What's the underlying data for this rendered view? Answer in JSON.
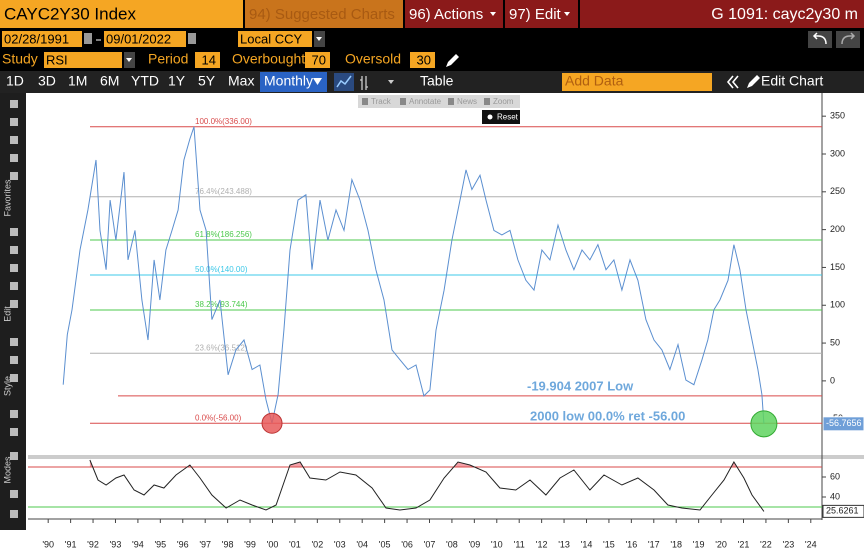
{
  "header": {
    "title": "CAYC2Y30 Index",
    "menus": [
      "94) Suggested Charts",
      "96) Actions",
      "97) Edit"
    ],
    "page_id": "G 1091: cayc2y30 m"
  },
  "controls": {
    "start_date": "02/28/1991",
    "end_date": "09/01/2022",
    "currency": "Local CCY",
    "study_label": "Study",
    "study": "RSI",
    "period_label": "Period",
    "period": 14,
    "overbought_label": "Overbought",
    "overbought": 70,
    "oversold_label": "Oversold",
    "oversold": 30
  },
  "range_bar": {
    "periods": [
      "1D",
      "3D",
      "1M",
      "6M",
      "YTD",
      "1Y",
      "5Y",
      "Max"
    ],
    "frequency": "Monthly",
    "table": "Table",
    "add_data": "Add Data",
    "edit_chart": "Edit Chart"
  },
  "chart_tools": {
    "items": [
      "Track",
      "Annotate",
      "News",
      "Zoom"
    ],
    "reset": "Reset"
  },
  "sidebar": [
    "Favorites",
    "Edit",
    "Style",
    "Modes"
  ],
  "chart_data": [
    {
      "type": "line",
      "color": "#5b8fd0",
      "x": [
        1991.17,
        1991.35,
        1991.56,
        1991.92,
        1992.27,
        1992.63,
        1992.81,
        1993.08,
        1993.26,
        1993.52,
        1993.88,
        1994.06,
        1994.37,
        1994.68,
        1994.95,
        1995.22,
        1995.48,
        1995.75,
        1996.02,
        1996.29,
        1996.55,
        1996.82,
        1997.0,
        1997.27,
        1997.54,
        1997.8,
        1998.16,
        1998.52,
        1998.87,
        1999.23,
        1999.59,
        1999.94,
        2000.21,
        2000.48,
        2000.75,
        2001.01,
        2001.28,
        2001.64,
        2001.99,
        2002.26,
        2002.62,
        2002.97,
        2003.33,
        2003.69,
        2004.04,
        2004.4,
        2004.76,
        2005.11,
        2005.47,
        2005.83,
        2006.18,
        2006.54,
        2006.9,
        2007.25,
        2007.52,
        2007.79,
        2008.15,
        2008.5,
        2008.86,
        2009.13,
        2009.39,
        2009.75,
        2010.02,
        2010.37,
        2010.73,
        2011.09,
        2011.44,
        2011.8,
        2012.16,
        2012.51,
        2012.87,
        2013.23,
        2013.58,
        2013.94,
        2014.3,
        2014.65,
        2015.01,
        2015.37,
        2015.72,
        2016.08,
        2016.44,
        2016.79,
        2017.15,
        2017.51,
        2017.86,
        2018.22,
        2018.58,
        2018.93,
        2019.29,
        2019.65,
        2019.91,
        2020.18,
        2020.45,
        2020.81,
        2021.07,
        2021.34,
        2021.61,
        2021.88,
        2022.14,
        2022.32,
        2022.41
      ],
      "values": [
        -5,
        61,
        94,
        173,
        226,
        292,
        199,
        147,
        239,
        186,
        276,
        160,
        199,
        107,
        54,
        160,
        107,
        173,
        199,
        226,
        292,
        320,
        336,
        226,
        199,
        81,
        107,
        8,
        41,
        54,
        15,
        21,
        -25,
        -56,
        -18,
        67,
        173,
        239,
        246,
        147,
        239,
        186,
        226,
        199,
        266,
        239,
        199,
        147,
        107,
        41,
        28,
        15,
        21,
        -19.904,
        -12,
        67,
        120,
        186,
        239,
        279,
        253,
        272,
        239,
        199,
        193,
        199,
        160,
        133,
        120,
        173,
        160,
        206,
        173,
        147,
        173,
        160,
        180,
        147,
        160,
        120,
        160,
        133,
        81,
        54,
        41,
        15,
        48,
        1,
        -5,
        28,
        54,
        94,
        107,
        133,
        180,
        147,
        94,
        54,
        15,
        -18,
        -56.7656
      ],
      "xlim": [
        1989.6,
        2025.0
      ],
      "ylim": [
        -98,
        378
      ],
      "yticks": [
        -50,
        0,
        50,
        100,
        150,
        200,
        250,
        300,
        350
      ],
      "xticks": [
        {
          "value": 1990.5,
          "label": "'90"
        },
        {
          "value": 1991.5,
          "label": "'91"
        },
        {
          "value": 1992.5,
          "label": "'92"
        },
        {
          "value": 1993.5,
          "label": "'93"
        },
        {
          "value": 1994.5,
          "label": "'94"
        },
        {
          "value": 1995.5,
          "label": "'95"
        },
        {
          "value": 1996.5,
          "label": "'96"
        },
        {
          "value": 1997.5,
          "label": "'97"
        },
        {
          "value": 1998.5,
          "label": "'98"
        },
        {
          "value": 1999.5,
          "label": "'99"
        },
        {
          "value": 2000.5,
          "label": "'00"
        },
        {
          "value": 2001.5,
          "label": "'01"
        },
        {
          "value": 2002.5,
          "label": "'02"
        },
        {
          "value": 2003.5,
          "label": "'03"
        },
        {
          "value": 2004.5,
          "label": "'04"
        },
        {
          "value": 2005.5,
          "label": "'05"
        },
        {
          "value": 2006.5,
          "label": "'06"
        },
        {
          "value": 2007.5,
          "label": "'07"
        },
        {
          "value": 2008.5,
          "label": "'08"
        },
        {
          "value": 2009.5,
          "label": "'09"
        },
        {
          "value": 2010.5,
          "label": "'10"
        },
        {
          "value": 2011.5,
          "label": "'11"
        },
        {
          "value": 2012.5,
          "label": "'12"
        },
        {
          "value": 2013.5,
          "label": "'13"
        },
        {
          "value": 2014.5,
          "label": "'14"
        },
        {
          "value": 2015.5,
          "label": "'15"
        },
        {
          "value": 2016.5,
          "label": "'16"
        },
        {
          "value": 2017.5,
          "label": "'17"
        },
        {
          "value": 2018.5,
          "label": "'18"
        },
        {
          "value": 2019.5,
          "label": "'19"
        },
        {
          "value": 2020.5,
          "label": "'20"
        },
        {
          "value": 2021.5,
          "label": "'21"
        },
        {
          "value": 2022.5,
          "label": "'22"
        },
        {
          "value": 2023.5,
          "label": "'23"
        },
        {
          "value": 2024.5,
          "label": "'24"
        }
      ],
      "reference_lines": [
        {
          "label": "100.0%(336.00)",
          "value": 336,
          "color": "#d94a4a"
        },
        {
          "label": "76.4%(243.488)",
          "value": 243.488,
          "color": "#b0b0b0"
        },
        {
          "label": "61.8%(186.256)",
          "value": 186.256,
          "color": "#4cc94c"
        },
        {
          "label": "50.0%(140.00)",
          "value": 140,
          "color": "#3cc8e8"
        },
        {
          "label": "38.2%(93.744)",
          "value": 93.744,
          "color": "#4cc94c"
        },
        {
          "label": "23.6%(36.512)",
          "value": 36.512,
          "color": "#b0b0b0"
        },
        {
          "label": "0.0%(-56.00)",
          "value": -56,
          "color": "#d94a4a"
        }
      ],
      "support_line": {
        "value": -19.904,
        "color": "#d94a4a"
      },
      "annotations": [
        "-19.904 2007 Low",
        "2000 low 00.0% ret -56.00"
      ]
    },
    {
      "type": "line",
      "color": "#222222",
      "x": [
        1992.36,
        1992.72,
        1993.08,
        1993.52,
        1993.88,
        1994.33,
        1994.77,
        1995.22,
        1995.66,
        1996.2,
        1996.82,
        1997.27,
        1997.8,
        1998.43,
        1999.05,
        1999.59,
        2000.21,
        2000.66,
        2001.28,
        2001.73,
        2002.17,
        2002.88,
        2003.51,
        2004.22,
        2004.94,
        2005.56,
        2006.18,
        2006.9,
        2007.52,
        2008.15,
        2008.77,
        2009.3,
        2010.02,
        2010.64,
        2011.35,
        2011.98,
        2012.69,
        2013.32,
        2013.94,
        2014.65,
        2015.28,
        2016.08,
        2016.79,
        2017.51,
        2018.13,
        2018.75,
        2019.56,
        2020.09,
        2020.63,
        2021.07,
        2021.52,
        2021.88,
        2022.41
      ],
      "values": [
        77,
        57,
        52,
        59,
        62,
        47,
        42,
        52,
        49,
        62,
        72,
        59,
        42,
        29,
        37,
        32,
        27,
        32,
        72,
        75,
        59,
        57,
        65,
        62,
        49,
        29,
        27,
        29,
        37,
        59,
        75,
        72,
        65,
        49,
        47,
        57,
        42,
        59,
        67,
        47,
        62,
        52,
        59,
        47,
        32,
        29,
        27,
        42,
        57,
        75,
        59,
        42,
        25.6261
      ],
      "ylim": [
        19,
        77
      ],
      "yticks": [
        40,
        60
      ],
      "overbought_color": "#d94a4a",
      "oversold_color": "#4cc94c"
    }
  ]
}
